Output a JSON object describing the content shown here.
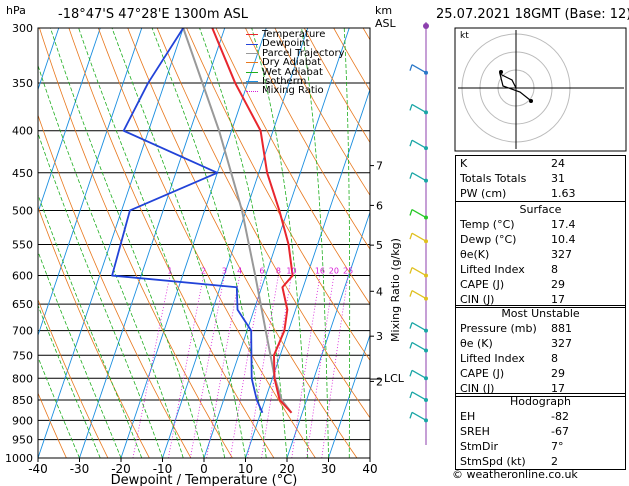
{
  "header": {
    "p_unit": "hPa",
    "location": "-18°47'S 47°28'E 1300m ASL",
    "km_label": "km",
    "asl_label": "ASL",
    "datetime": "25.07.2021 18GMT (Base: 12)"
  },
  "legend": [
    {
      "label": "Temperature",
      "color": "#e8262d"
    },
    {
      "label": "Dewpoint",
      "color": "#2243d8"
    },
    {
      "label": "Parcel Trajectory",
      "color": "#999999"
    },
    {
      "label": "Dry Adiabat",
      "color": "#e8781e"
    },
    {
      "label": "Wet Adiabat",
      "color": "#1fae1f"
    },
    {
      "label": "Isotherm",
      "color": "#1c8fe0"
    },
    {
      "label": "Mixing Ratio",
      "color": "#d81ad8"
    }
  ],
  "chart_data": {
    "type": "skew-t",
    "xlabel": "Dewpoint / Temperature (°C)",
    "ylabel": "",
    "x_ticks": [
      -40,
      -30,
      -20,
      -10,
      0,
      10,
      20,
      30,
      40
    ],
    "p_ticks": [
      300,
      350,
      400,
      450,
      500,
      550,
      600,
      650,
      700,
      750,
      800,
      850,
      900,
      950,
      1000
    ],
    "height_ticks": [
      {
        "label": "7",
        "p": 441
      },
      {
        "label": "6",
        "p": 493
      },
      {
        "label": "5",
        "p": 551
      },
      {
        "label": "4",
        "p": 627
      },
      {
        "label": "3",
        "p": 711
      },
      {
        "label": "2",
        "p": 807
      },
      {
        "label": "LCL",
        "p": 795
      }
    ],
    "mixing_ratio_label": "Mixing Ratio (g/kg)",
    "mixing_ratio_values": [
      "1",
      "2",
      "3",
      "4",
      "6",
      "8",
      "10",
      "16",
      "20",
      "25"
    ],
    "temperature": [
      {
        "p": 881,
        "t": 17.4
      },
      {
        "p": 850,
        "t": 13.5
      },
      {
        "p": 800,
        "t": 10.5
      },
      {
        "p": 750,
        "t": 8.5
      },
      {
        "p": 700,
        "t": 9.0
      },
      {
        "p": 660,
        "t": 8.0
      },
      {
        "p": 620,
        "t": 5.0
      },
      {
        "p": 600,
        "t": 6.5
      },
      {
        "p": 550,
        "t": 3.0
      },
      {
        "p": 500,
        "t": -2.0
      },
      {
        "p": 450,
        "t": -8.0
      },
      {
        "p": 400,
        "t": -13.0
      },
      {
        "p": 350,
        "t": -23.0
      },
      {
        "p": 300,
        "t": -33.0
      }
    ],
    "dewpoint": [
      {
        "p": 881,
        "t": 10.4
      },
      {
        "p": 850,
        "t": 8.0
      },
      {
        "p": 800,
        "t": 5.0
      },
      {
        "p": 700,
        "t": 1.0
      },
      {
        "p": 660,
        "t": -4.0
      },
      {
        "p": 620,
        "t": -6.0
      },
      {
        "p": 600,
        "t": -37.0
      },
      {
        "p": 500,
        "t": -38.0
      },
      {
        "p": 450,
        "t": -20.0
      },
      {
        "p": 400,
        "t": -46.0
      },
      {
        "p": 350,
        "t": -44.0
      },
      {
        "p": 300,
        "t": -40.0
      }
    ],
    "parcel": [
      {
        "p": 881,
        "t": 17.4
      },
      {
        "p": 850,
        "t": 14.0
      },
      {
        "p": 800,
        "t": 10.6
      },
      {
        "p": 700,
        "t": 4.5
      },
      {
        "p": 600,
        "t": -2.5
      },
      {
        "p": 500,
        "t": -11.0
      },
      {
        "p": 400,
        "t": -23.0
      },
      {
        "p": 300,
        "t": -40.0
      }
    ]
  },
  "indices": {
    "rows": [
      {
        "k": "K",
        "v": "24"
      },
      {
        "k": "Totals Totals",
        "v": "31"
      },
      {
        "k": "PW (cm)",
        "v": "1.63"
      }
    ]
  },
  "surface": {
    "title": "Surface",
    "rows": [
      {
        "k": "Temp (°C)",
        "v": "17.4"
      },
      {
        "k": "Dewp (°C)",
        "v": "10.4"
      },
      {
        "k": "θe(K)",
        "v": "327"
      },
      {
        "k": "Lifted Index",
        "v": "8"
      },
      {
        "k": "CAPE (J)",
        "v": "29"
      },
      {
        "k": "CIN (J)",
        "v": "17"
      }
    ]
  },
  "unstable": {
    "title": "Most Unstable",
    "rows": [
      {
        "k": "Pressure (mb)",
        "v": "881"
      },
      {
        "k": "θe (K)",
        "v": "327"
      },
      {
        "k": "Lifted Index",
        "v": "8"
      },
      {
        "k": "CAPE (J)",
        "v": "29"
      },
      {
        "k": "CIN (J)",
        "v": "17"
      }
    ]
  },
  "hodograph": {
    "title": "Hodograph",
    "kt_label": "kt",
    "rows": [
      {
        "k": "EH",
        "v": "-82"
      },
      {
        "k": "SREH",
        "v": "-67"
      },
      {
        "k": "StmDir",
        "v": "7°"
      },
      {
        "k": "StmSpd (kt)",
        "v": "2"
      }
    ]
  },
  "footer": "© weatheronline.co.uk"
}
